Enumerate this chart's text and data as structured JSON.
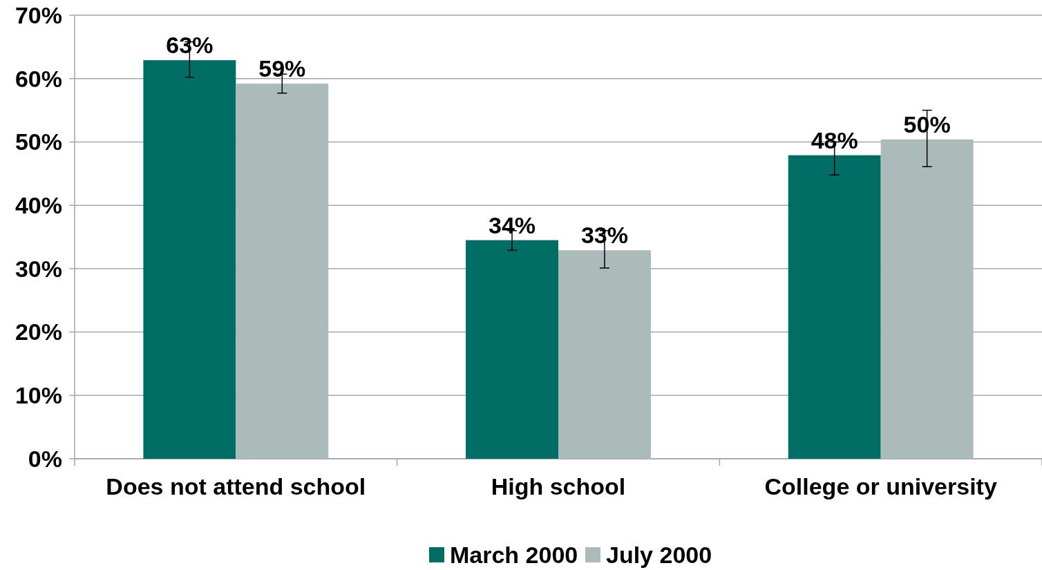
{
  "chart_data": {
    "type": "bar",
    "categories": [
      "Does not attend school",
      "High school",
      "College or university"
    ],
    "series": [
      {
        "name": "March 2000",
        "color": "#006e64",
        "values": [
          62.9,
          34.5,
          47.9
        ],
        "value_labels": [
          "63%",
          "34%",
          "48%"
        ],
        "errors": [
          [
            60.2,
            65.8
          ],
          [
            32.9,
            36.0
          ],
          [
            44.8,
            50.0
          ]
        ]
      },
      {
        "name": "July 2000",
        "color": "#aabbb9",
        "values": [
          59.2,
          32.9,
          50.4
        ],
        "value_labels": [
          "59%",
          "33%",
          "50%"
        ],
        "errors": [
          [
            57.7,
            60.7
          ],
          [
            30.1,
            36.0
          ],
          [
            46.1,
            55.0
          ]
        ]
      }
    ],
    "ylim": [
      0,
      70
    ],
    "yticks": [
      {
        "value": 0,
        "label": "0%"
      },
      {
        "value": 10,
        "label": "10%"
      },
      {
        "value": 20,
        "label": "20%"
      },
      {
        "value": 30,
        "label": "30%"
      },
      {
        "value": 40,
        "label": "40%"
      },
      {
        "value": 50,
        "label": "50%"
      },
      {
        "value": 60,
        "label": "60%"
      },
      {
        "value": 70,
        "label": "70%"
      }
    ],
    "grid": "y",
    "legend": "bottom"
  }
}
